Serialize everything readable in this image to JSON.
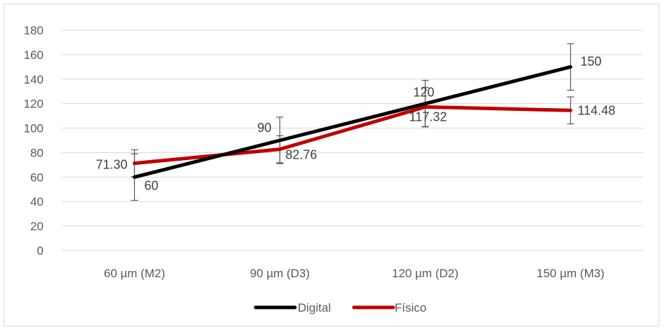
{
  "chart_data": {
    "type": "line",
    "categories": [
      "60 µm (M2)",
      "90 µm (D3)",
      "120 µm (D2)",
      "150 µm (M3)"
    ],
    "series": [
      {
        "name": "Digital",
        "color": "#000000",
        "values": [
          60,
          90,
          120,
          150
        ],
        "labels": [
          "60",
          "90",
          "120",
          "150"
        ],
        "error": [
          19,
          19,
          19,
          19
        ]
      },
      {
        "name": "Físico",
        "color": "#c00000",
        "values": [
          71.3,
          82.76,
          117.32,
          114.48
        ],
        "labels": [
          "71.30",
          "82.76",
          "117.32",
          "114.48"
        ],
        "error": [
          11,
          11,
          16,
          11
        ]
      }
    ],
    "ylim": [
      0,
      180
    ],
    "yticks": [
      "0",
      "20",
      "40",
      "60",
      "80",
      "100",
      "120",
      "140",
      "160",
      "180"
    ],
    "title": "",
    "xlabel": "",
    "ylabel": "",
    "grid": true,
    "legend": "bottom"
  }
}
